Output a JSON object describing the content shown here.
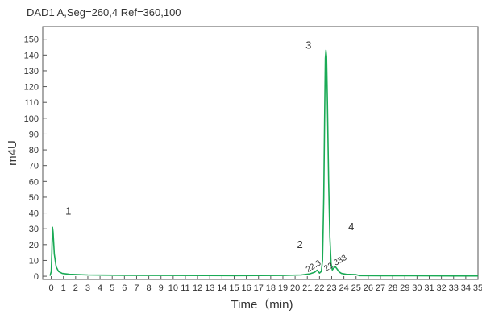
{
  "chart_data": {
    "type": "line",
    "title": "DAD1 A,Seg=260,4 Ref=360,100",
    "xlabel": "Time（min)",
    "ylabel": "m4U",
    "xlim": [
      -0.7,
      35
    ],
    "ylim": [
      -2,
      158
    ],
    "x_ticks": [
      0,
      1,
      2,
      3,
      4,
      5,
      6,
      7,
      8,
      9,
      10,
      11,
      12,
      13,
      14,
      15,
      16,
      17,
      18,
      19,
      20,
      21,
      22,
      23,
      24,
      25,
      26,
      27,
      28,
      29,
      30,
      31,
      32,
      33,
      34,
      35
    ],
    "y_ticks": [
      0,
      10,
      20,
      30,
      40,
      50,
      60,
      70,
      80,
      90,
      100,
      110,
      120,
      130,
      140,
      150
    ],
    "grid": false,
    "color": "#1aaa55",
    "series": [
      {
        "points": [
          [
            -0.1,
            0.3
          ],
          [
            0.0,
            3
          ],
          [
            0.05,
            15
          ],
          [
            0.1,
            31
          ],
          [
            0.15,
            28
          ],
          [
            0.25,
            14
          ],
          [
            0.4,
            6
          ],
          [
            0.6,
            3
          ],
          [
            0.9,
            1.8
          ],
          [
            1.5,
            1.2
          ],
          [
            3,
            0.8
          ],
          [
            6,
            0.6
          ],
          [
            10,
            0.5
          ],
          [
            15,
            0.4
          ],
          [
            19,
            0.5
          ],
          [
            20.5,
            0.8
          ],
          [
            21.2,
            1.5
          ],
          [
            21.6,
            2.5
          ],
          [
            21.8,
            3.8
          ],
          [
            21.9,
            3.0
          ],
          [
            22.0,
            2.0
          ],
          [
            22.15,
            3
          ],
          [
            22.25,
            10
          ],
          [
            22.35,
            50
          ],
          [
            22.42,
            100
          ],
          [
            22.48,
            138
          ],
          [
            22.53,
            143
          ],
          [
            22.58,
            139
          ],
          [
            22.65,
            110
          ],
          [
            22.75,
            60
          ],
          [
            22.85,
            25
          ],
          [
            22.95,
            8
          ],
          [
            23.05,
            4
          ],
          [
            23.15,
            5
          ],
          [
            23.3,
            6
          ],
          [
            23.45,
            4.5
          ],
          [
            23.6,
            2.8
          ],
          [
            23.8,
            1.8
          ],
          [
            24.2,
            1.2
          ],
          [
            25,
            1.0
          ],
          [
            25.3,
            0.4
          ],
          [
            27,
            0.3
          ],
          [
            30,
            0.3
          ],
          [
            33,
            0.2
          ],
          [
            35,
            0.2
          ]
        ]
      }
    ],
    "annotations": [
      {
        "text": "1",
        "x": 1.4,
        "y": 39,
        "kind": "peak"
      },
      {
        "text": "2",
        "x": 20.4,
        "y": 18,
        "kind": "peak"
      },
      {
        "text": "3",
        "x": 21.1,
        "y": 144,
        "kind": "peak"
      },
      {
        "text": "4",
        "x": 24.6,
        "y": 29,
        "kind": "peak"
      },
      {
        "text": "22.3",
        "x": 21.6,
        "y": 5,
        "kind": "rt"
      },
      {
        "text": "22.333",
        "x": 23.4,
        "y": 7,
        "kind": "rt"
      }
    ]
  }
}
